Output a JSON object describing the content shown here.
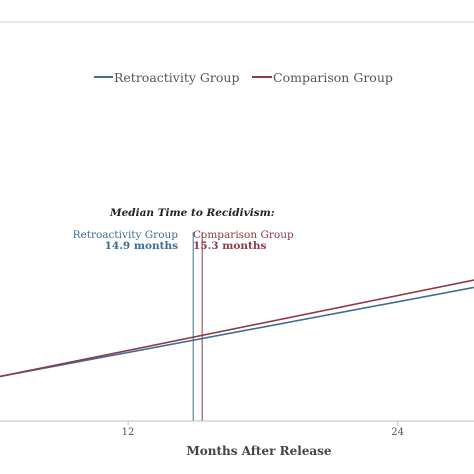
{
  "colors": {
    "retro": "#3f6e94",
    "comparison": "#8c3b47",
    "axis": "#bfbfbf",
    "frame": "#d0d0d0"
  },
  "legend": {
    "position": "top",
    "items": [
      {
        "label": "Retroactivity Group",
        "color": "#3f6e94"
      },
      {
        "label": "Comparison Group",
        "color": "#8c3b47"
      }
    ]
  },
  "annotation": {
    "title": "Median Time to Recidivism:",
    "retro": {
      "label": "Retroactivity Group",
      "value": "14.9 months"
    },
    "comparison": {
      "label": "Comparison Group",
      "value": "15.3 months"
    }
  },
  "chart_data": {
    "type": "line",
    "title": "",
    "xlabel": "Months After Release",
    "ylabel": "",
    "grid": false,
    "xtick_labels": [
      "12",
      "24"
    ],
    "xlim": [
      6.3,
      27.4
    ],
    "ylim": [
      0,
      1
    ],
    "series": [
      {
        "name": "Retroactivity Group",
        "color": "#3f6e94",
        "x": [
          6.3,
          27.4
        ],
        "y": [
          0.12,
          0.36
        ]
      },
      {
        "name": "Comparison Group",
        "color": "#8c3b47",
        "x": [
          6.3,
          27.4
        ],
        "y": [
          0.12,
          0.38
        ]
      }
    ],
    "vertical_markers": [
      {
        "series": "Retroactivity Group",
        "x": 14.9
      },
      {
        "series": "Comparison Group",
        "x": 15.3
      }
    ]
  }
}
